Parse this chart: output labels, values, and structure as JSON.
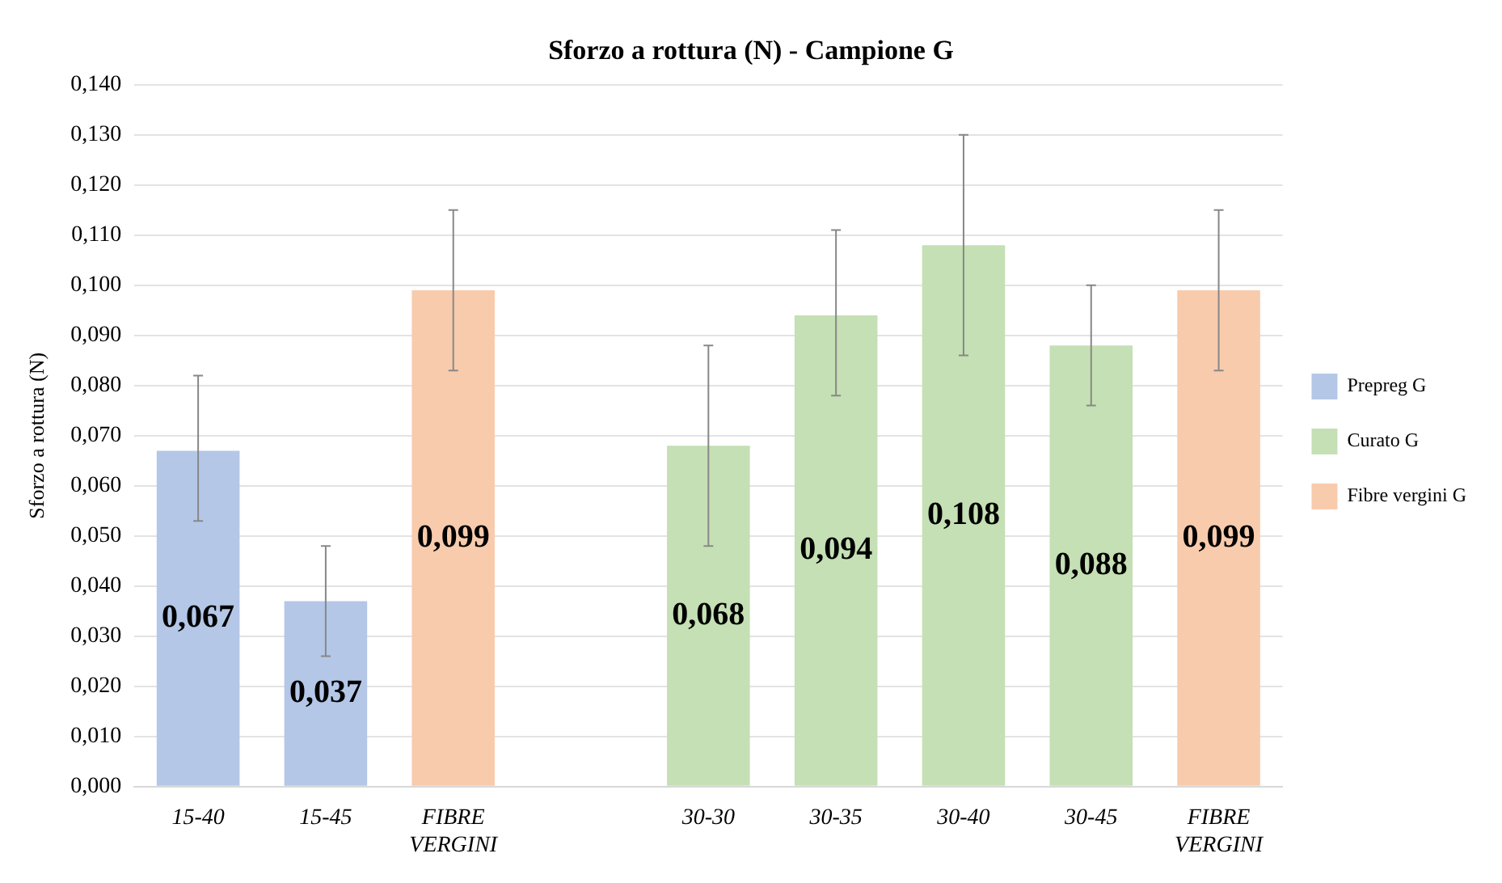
{
  "chart_data": {
    "type": "bar",
    "title": "Sforzo a rottura (N) - Campione G",
    "ylabel": "Sforzo a rottura (N)",
    "categories": [
      "15-40",
      "15-45",
      "FIBRE VERGINI",
      null,
      "30-30",
      "30-35",
      "30-40",
      "30-45",
      "FIBRE VERGINI"
    ],
    "series": [
      {
        "name": "Prepreg G",
        "color": "#b4c7e7",
        "values": [
          0.067,
          0.037,
          null,
          null,
          null,
          null,
          null,
          null,
          null
        ],
        "errors": [
          [
            0.053,
            0.082
          ],
          [
            0.026,
            0.048
          ],
          null,
          null,
          null,
          null,
          null,
          null,
          null
        ],
        "value_labels": [
          "0,067",
          "0,037",
          null,
          null,
          null,
          null,
          null,
          null,
          null
        ]
      },
      {
        "name": "Curato G",
        "color": "#c5e0b4",
        "values": [
          null,
          null,
          null,
          null,
          0.068,
          0.094,
          0.108,
          0.088,
          null
        ],
        "errors": [
          null,
          null,
          null,
          null,
          [
            0.048,
            0.088
          ],
          [
            0.078,
            0.111
          ],
          [
            0.086,
            0.13
          ],
          [
            0.076,
            0.1
          ],
          null
        ],
        "value_labels": [
          null,
          null,
          null,
          null,
          "0,068",
          "0,094",
          "0,108",
          "0,088",
          null
        ]
      },
      {
        "name": "Fibre vergini G",
        "color": "#f8cbad",
        "values": [
          null,
          null,
          0.099,
          null,
          null,
          null,
          null,
          null,
          0.099
        ],
        "errors": [
          null,
          null,
          [
            0.083,
            0.115
          ],
          null,
          null,
          null,
          null,
          null,
          [
            0.083,
            0.115
          ]
        ],
        "value_labels": [
          null,
          null,
          "0,099",
          null,
          null,
          null,
          null,
          null,
          "0,099"
        ]
      }
    ],
    "ylim": [
      0,
      0.14
    ],
    "yticks": [
      {
        "value": 0,
        "label": "0,000"
      },
      {
        "value": 0.01,
        "label": "0,010"
      },
      {
        "value": 0.02,
        "label": "0,020"
      },
      {
        "value": 0.03,
        "label": "0,030"
      },
      {
        "value": 0.04,
        "label": "0,040"
      },
      {
        "value": 0.05,
        "label": "0,050"
      },
      {
        "value": 0.06,
        "label": "0,060"
      },
      {
        "value": 0.07,
        "label": "0,070"
      },
      {
        "value": 0.08,
        "label": "0,080"
      },
      {
        "value": 0.09,
        "label": "0,090"
      },
      {
        "value": 0.1,
        "label": "0,100"
      },
      {
        "value": 0.11,
        "label": "0,110"
      },
      {
        "value": 0.12,
        "label": "0,120"
      },
      {
        "value": 0.13,
        "label": "0,130"
      },
      {
        "value": 0.14,
        "label": "0,140"
      }
    ],
    "grid": "y",
    "legend": "right"
  }
}
